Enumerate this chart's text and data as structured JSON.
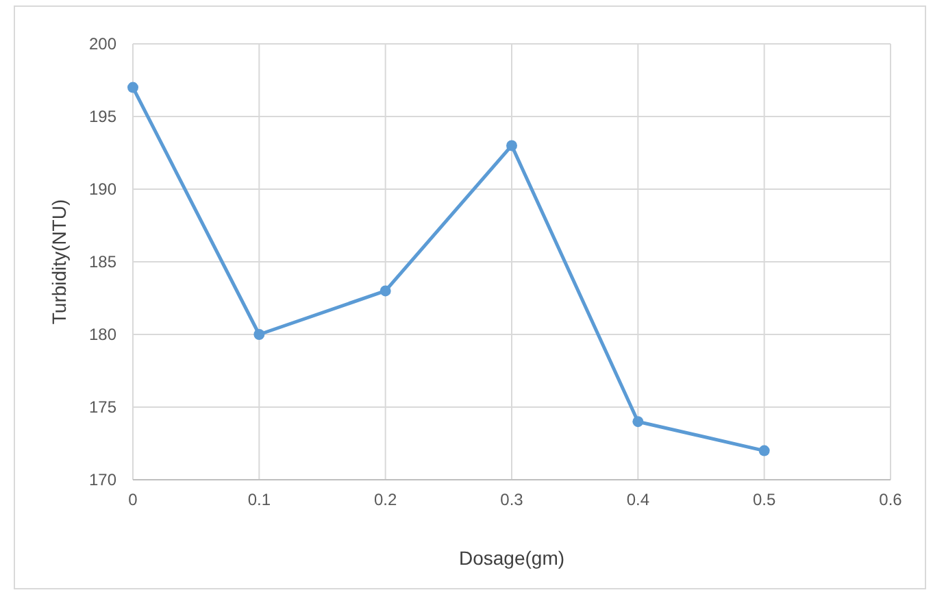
{
  "chart_data": {
    "type": "line",
    "xlabel": "Dosage(gm)",
    "ylabel": "Turbidity(NTU)",
    "x": [
      0,
      0.1,
      0.2,
      0.3,
      0.4,
      0.5
    ],
    "series": [
      {
        "color": "#5b9bd5",
        "values": [
          197,
          180,
          183,
          193,
          174,
          172
        ]
      }
    ],
    "xlim": [
      0,
      0.6
    ],
    "xticks": [
      0,
      0.1,
      0.2,
      0.3,
      0.4,
      0.5,
      0.6
    ],
    "ylim": [
      170,
      200
    ],
    "yticks": [
      170,
      175,
      180,
      185,
      190,
      195,
      200
    ],
    "grid": true,
    "marker": "circle",
    "line_style": "solid"
  }
}
